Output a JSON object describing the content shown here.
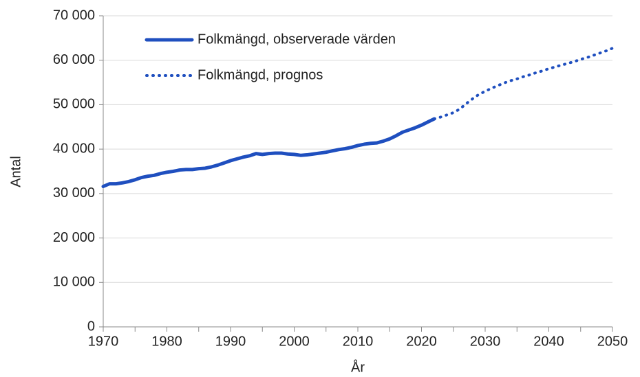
{
  "chart_data": {
    "type": "line",
    "xlabel": "År",
    "ylabel": "Antal",
    "xlim": [
      1970,
      2050
    ],
    "xticks": [
      1970,
      1980,
      1990,
      2000,
      2010,
      2020,
      2030,
      2040,
      2050
    ],
    "xminorticks": [
      1975,
      1985,
      1995,
      2005,
      2015,
      2025,
      2035,
      2045
    ],
    "ylim": [
      0,
      70000
    ],
    "yticks": [
      0,
      {
        "value": 10000,
        "label": "10 000"
      },
      {
        "value": 20000,
        "label": "20 000"
      },
      {
        "value": 30000,
        "label": "30 000"
      },
      {
        "value": 40000,
        "label": "40 000"
      },
      {
        "value": 50000,
        "label": "50 000"
      },
      {
        "value": 60000,
        "label": "60 000"
      },
      {
        "value": 70000,
        "label": "70 000"
      }
    ],
    "grid": true,
    "legend": "upper left",
    "series": [
      {
        "name": "Folkmängd, observerade värden",
        "color": "#1f4fbf",
        "style": "solid",
        "x": [
          1970,
          1971,
          1972,
          1973,
          1974,
          1975,
          1976,
          1977,
          1978,
          1979,
          1980,
          1981,
          1982,
          1983,
          1984,
          1985,
          1986,
          1987,
          1988,
          1989,
          1990,
          1991,
          1992,
          1993,
          1994,
          1995,
          1996,
          1997,
          1998,
          1999,
          2000,
          2001,
          2002,
          2003,
          2004,
          2005,
          2006,
          2007,
          2008,
          2009,
          2010,
          2011,
          2012,
          2013,
          2014,
          2015,
          2016,
          2017,
          2018,
          2019,
          2020,
          2021,
          2022
        ],
        "values": [
          31600,
          32200,
          32200,
          32400,
          32700,
          33100,
          33600,
          33900,
          34100,
          34500,
          34800,
          35000,
          35300,
          35400,
          35400,
          35600,
          35700,
          36000,
          36400,
          36900,
          37400,
          37800,
          38200,
          38500,
          39000,
          38800,
          39000,
          39100,
          39100,
          38900,
          38800,
          38600,
          38700,
          38900,
          39100,
          39300,
          39600,
          39900,
          40100,
          40400,
          40800,
          41100,
          41300,
          41400,
          41800,
          42300,
          43000,
          43800,
          44300,
          44800,
          45400,
          46100,
          46800
        ]
      },
      {
        "name": "Folkmängd, prognos",
        "color": "#1f4fbf",
        "style": "dotted",
        "x": [
          2022,
          2023,
          2024,
          2025,
          2026,
          2027,
          2028,
          2029,
          2030,
          2031,
          2032,
          2033,
          2034,
          2035,
          2036,
          2037,
          2038,
          2039,
          2040,
          2041,
          2042,
          2043,
          2044,
          2045,
          2046,
          2047,
          2048,
          2049,
          2050
        ],
        "values": [
          46800,
          47200,
          47700,
          48200,
          49000,
          50200,
          51300,
          52300,
          53000,
          53700,
          54300,
          54900,
          55400,
          55800,
          56300,
          56700,
          57200,
          57600,
          58100,
          58500,
          58900,
          59300,
          59700,
          60200,
          60600,
          61100,
          61600,
          62100,
          62700
        ]
      }
    ]
  }
}
